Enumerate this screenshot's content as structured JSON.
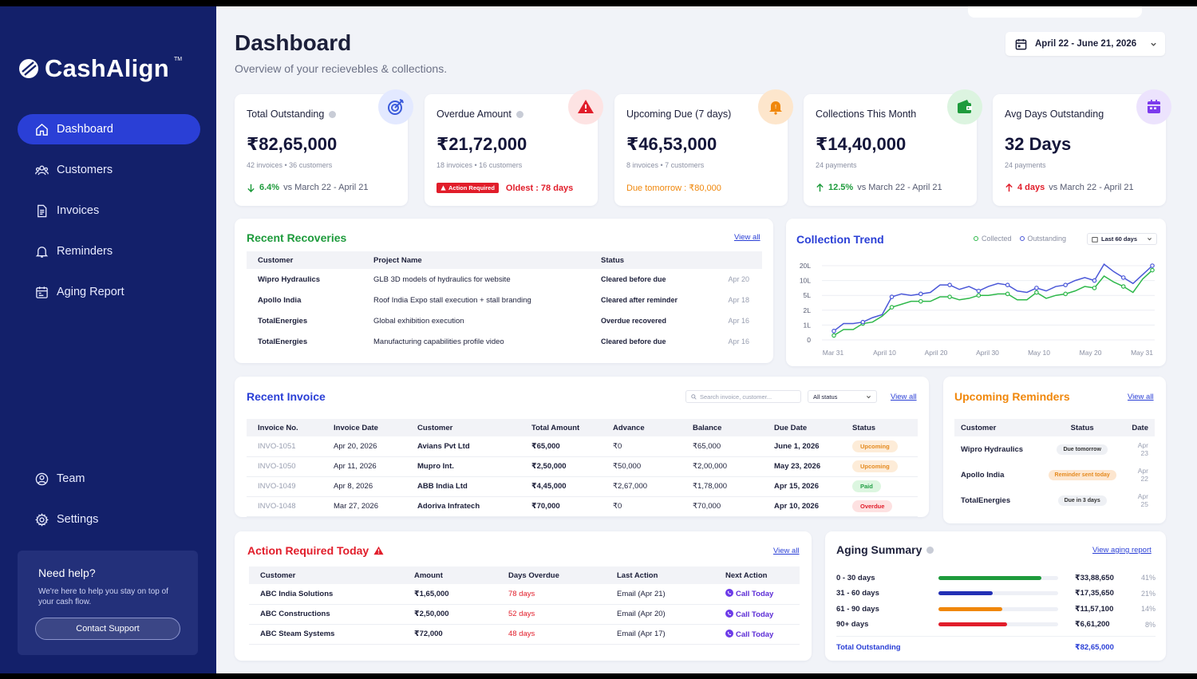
{
  "brand": {
    "name": "CashAlign",
    "tm": "TM"
  },
  "nav": {
    "items": [
      {
        "label": "Dashboard"
      },
      {
        "label": "Customers"
      },
      {
        "label": "Invoices"
      },
      {
        "label": "Reminders"
      },
      {
        "label": "Aging Report"
      }
    ],
    "bottom": [
      {
        "label": "Team"
      },
      {
        "label": "Settings"
      }
    ]
  },
  "help": {
    "title": "Need help?",
    "text": "We're here to help you stay on top of your cash flow.",
    "button": "Contact Support"
  },
  "header": {
    "title": "Dashboard",
    "subtitle": "Overview of your recievebles & collections.",
    "date_range": "April 22 - June 21, 2026"
  },
  "kpis": {
    "outstanding": {
      "title": "Total Outstanding",
      "value": "₹82,65,000",
      "meta": "42 invoices • 36 customers",
      "delta": "6.4%",
      "compare": "vs March 22 - April 21",
      "icon": "target-icon",
      "icon_color": "#3b5bdb"
    },
    "overdue": {
      "title": "Overdue Amount",
      "value": "₹21,72,000",
      "meta": "18 invoices • 16 customers",
      "tag": "Action Required",
      "oldest": "Oldest : 78 days",
      "icon": "warning-icon",
      "icon_color": "#e11d2a"
    },
    "upcoming": {
      "title": "Upcoming Due (7 days)",
      "value": "₹46,53,000",
      "meta": "8 invoices • 7 customers",
      "foot": "Due tomorrow : ₹80,000",
      "icon": "bell-icon",
      "icon_color": "#f0870b"
    },
    "collections": {
      "title": "Collections This Month",
      "value": "₹14,40,000",
      "meta": "24 payments",
      "delta": "12.5%",
      "compare": "vs March 22 - April 21",
      "icon": "wallet-icon",
      "icon_color": "#1e9b3c"
    },
    "avgdays": {
      "title": "Avg Days Outstanding",
      "value": "32 Days",
      "meta": "24 payments",
      "delta": "4 days",
      "compare": "vs March 22 - April 21",
      "icon": "calendar-icon",
      "icon_color": "#7c3aed"
    }
  },
  "recoveries": {
    "title": "Recent Recoveries",
    "view_all": "View all",
    "headers": [
      "Customer",
      "Project Name",
      "Status"
    ],
    "rows": [
      {
        "customer": "Wipro Hydraulics",
        "project": "GLB 3D models of hydraulics for website",
        "status": "Cleared before due",
        "date": "Apr 20"
      },
      {
        "customer": "Apollo India",
        "project": "Roof India Expo stall execution + stall branding",
        "status": "Cleared after reminder",
        "date": "Apr 18"
      },
      {
        "customer": "TotalEnergies",
        "project": "Global exhibition execution",
        "status": "Overdue recovered",
        "date": "Apr 16"
      },
      {
        "customer": "TotalEnergies",
        "project": "Manufacturing capabilities profile video",
        "status": "Cleared before due",
        "date": "Apr 16"
      }
    ]
  },
  "trend": {
    "title": "Collection Trend",
    "legend_collected": "Collected",
    "legend_outstanding": "Outstanding",
    "range": "Last 60 days"
  },
  "chart_data": {
    "type": "line",
    "title": "Collection Trend",
    "y_ticks": [
      "0",
      "1L",
      "2L",
      "5L",
      "10L",
      "20L"
    ],
    "y_scale": "log-like (tick levels 0,1L,2L,5L,10L,20L)",
    "x_ticks": [
      "Mar 31",
      "April 10",
      "April 20",
      "April 30",
      "May 10",
      "May 20",
      "May 31"
    ],
    "y_max": 5,
    "grid": true,
    "legend": "top-right",
    "series": [
      {
        "name": "Collected",
        "color": "#2eb84a",
        "values": [
          0.3,
          0.7,
          0.7,
          1.1,
          1.2,
          1.6,
          2.2,
          2.4,
          2.6,
          2.6,
          2.6,
          2.9,
          2.9,
          2.7,
          2.8,
          3.0,
          3.0,
          3.1,
          3.1,
          2.7,
          2.7,
          3.2,
          2.8,
          3.0,
          3.1,
          3.3,
          3.6,
          3.5,
          4.3,
          3.9,
          3.6,
          3.2,
          4.1,
          4.7
        ]
      },
      {
        "name": "Outstanding",
        "color": "#4a57d8",
        "values": [
          0.6,
          1.1,
          1.1,
          1.2,
          1.5,
          1.7,
          2.9,
          3.1,
          3.0,
          3.1,
          3.2,
          3.7,
          3.7,
          3.4,
          3.6,
          3.3,
          3.6,
          3.8,
          3.7,
          3.3,
          3.2,
          3.5,
          3.3,
          3.6,
          3.7,
          4.0,
          4.2,
          4.0,
          5.1,
          4.6,
          4.2,
          3.8,
          4.4,
          5.0
        ]
      }
    ]
  },
  "invoices": {
    "title": "Recent Invoice",
    "search_placeholder": "Search invoice, customer...",
    "status_filter": "All status",
    "view_all": "View all",
    "headers": [
      "Invoice No.",
      "Invoice Date",
      "Customer",
      "Total Amount",
      "Advance",
      "Balance",
      "Due Date",
      "Status"
    ],
    "rows": [
      {
        "no": "INVO-1051",
        "date": "Apr 20, 2026",
        "customer": "Avians Pvt Ltd",
        "total": "₹65,000",
        "advance": "₹0",
        "balance": "₹65,000",
        "due": "June 1, 2026",
        "status": "Upcoming",
        "kind": "up"
      },
      {
        "no": "INVO-1050",
        "date": "Apr 11, 2026",
        "customer": "Mupro Int.",
        "total": "₹2,50,000",
        "advance": "₹50,000",
        "balance": "₹2,00,000",
        "due": "May 23, 2026",
        "status": "Upcoming",
        "kind": "up"
      },
      {
        "no": "INVO-1049",
        "date": "Apr 8, 2026",
        "customer": "ABB India Ltd",
        "total": "₹4,45,000",
        "advance": "₹2,67,000",
        "balance": "₹1,78,000",
        "due": "Apr 15, 2026",
        "status": "Paid",
        "kind": "paid"
      },
      {
        "no": "INVO-1048",
        "date": "Mar 27, 2026",
        "customer": "Adoriva Infratech",
        "total": "₹70,000",
        "advance": "₹0",
        "balance": "₹70,000",
        "due": "Apr 10, 2026",
        "status": "Overdue",
        "kind": "over"
      }
    ]
  },
  "reminders": {
    "title": "Upcoming Reminders",
    "view_all": "View all",
    "headers": [
      "Customer",
      "Status",
      "Date"
    ],
    "rows": [
      {
        "customer": "Wipro Hydraulics",
        "status": "Due tomorrow",
        "date": "Apr 23",
        "kind": "grey"
      },
      {
        "customer": "Apollo India",
        "status": "Reminder sent today",
        "date": "Apr 22",
        "kind": "ora"
      },
      {
        "customer": "TotalEnergies",
        "status": "Due in 3 days",
        "date": "Apr 25",
        "kind": "grey"
      }
    ]
  },
  "actions": {
    "title": "Action Required Today",
    "view_all": "View all",
    "headers": [
      "Customer",
      "Amount",
      "Days Overdue",
      "Last Action",
      "Next Action"
    ],
    "rows": [
      {
        "customer": "ABC India Solutions",
        "amount": "₹1,65,000",
        "days": "78 days",
        "last": "Email (Apr 21)",
        "next": "Call Today"
      },
      {
        "customer": "ABC Constructions",
        "amount": "₹2,50,000",
        "days": "52 days",
        "last": "Email (Apr 20)",
        "next": "Call Today"
      },
      {
        "customer": "ABC Steam Systems",
        "amount": "₹72,000",
        "days": "48 days",
        "last": "Email (Apr 17)",
        "next": "Call Today"
      }
    ]
  },
  "aging": {
    "title": "Aging Summary",
    "view_report": "View aging report",
    "rows": [
      {
        "label": "0 - 30 days",
        "amount": "₹33,88,650",
        "pct": "41%",
        "fraction": 0.86,
        "color": "#1e9b3c"
      },
      {
        "label": "31 - 60 days",
        "amount": "₹17,35,650",
        "pct": "21%",
        "fraction": 0.45,
        "color": "#2330b5"
      },
      {
        "label": "61 - 90 days",
        "amount": "₹11,57,100",
        "pct": "14%",
        "fraction": 0.53,
        "color": "#f0870b"
      },
      {
        "label": "90+ days",
        "amount": "₹6,61,200",
        "pct": "8%",
        "fraction": 0.57,
        "color": "#e11d2a"
      }
    ],
    "total_label": "Total Outstanding",
    "total_value": "₹82,65,000"
  }
}
